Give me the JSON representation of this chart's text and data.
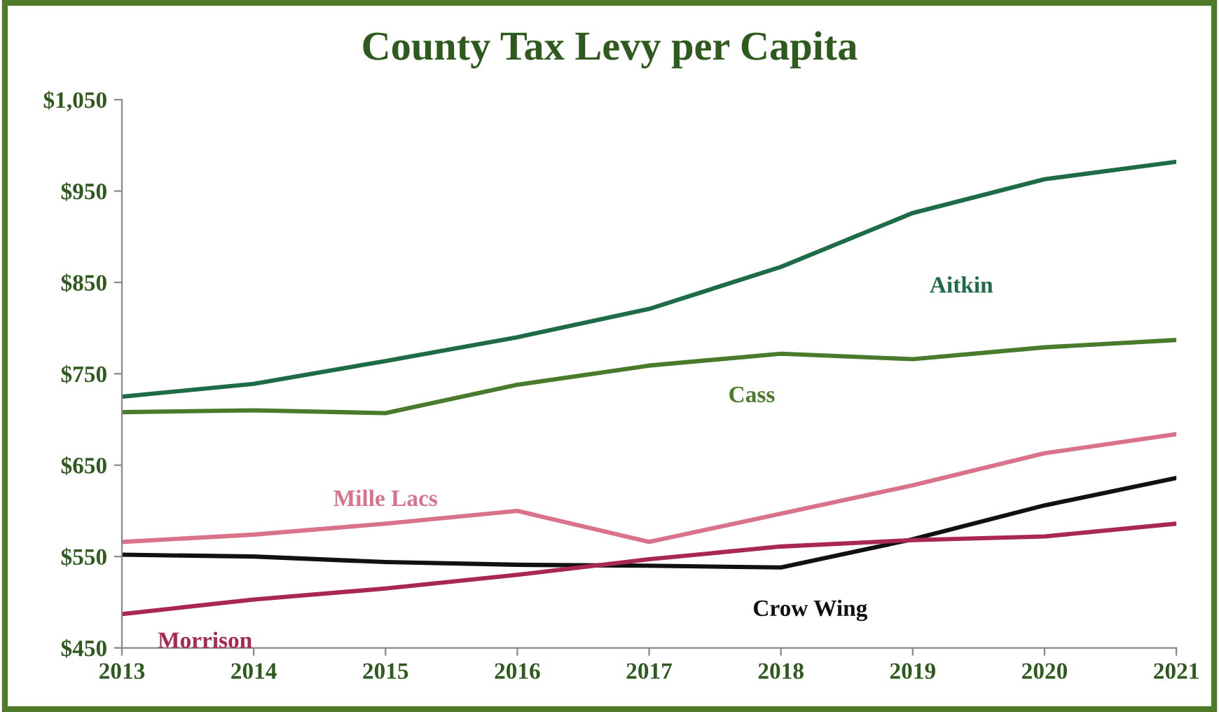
{
  "chart_data": {
    "type": "line",
    "title": "County Tax Levy per Capita",
    "x": [
      2013,
      2014,
      2015,
      2016,
      2017,
      2018,
      2019,
      2020,
      2021
    ],
    "xlim": [
      2013,
      2021
    ],
    "xticks": [
      2013,
      2014,
      2015,
      2016,
      2017,
      2018,
      2019,
      2020,
      2021
    ],
    "ylim": [
      450,
      1050
    ],
    "yticks": [
      {
        "value": 450,
        "label": "$450"
      },
      {
        "value": 550,
        "label": "$550"
      },
      {
        "value": 650,
        "label": "$650"
      },
      {
        "value": 750,
        "label": "$750"
      },
      {
        "value": 850,
        "label": "$850"
      },
      {
        "value": 950,
        "label": "$950"
      },
      {
        "value": 1050,
        "label": "$1,050"
      }
    ],
    "grid": false,
    "legend": false,
    "marker": "none",
    "line_style": "solid",
    "series": [
      {
        "name": "Aitkin",
        "color": "#1e6b48",
        "values": [
          725,
          739,
          764,
          790,
          821,
          867,
          926,
          963,
          982
        ]
      },
      {
        "name": "Cass",
        "color": "#4a7a2c",
        "values": [
          708,
          710,
          707,
          738,
          759,
          772,
          766,
          779,
          787
        ]
      },
      {
        "name": "Mille Lacs",
        "color": "#d9738b",
        "values": [
          566,
          574,
          586,
          600,
          566,
          597,
          628,
          663,
          684
        ]
      },
      {
        "name": "Crow Wing",
        "color": "#111111",
        "values": [
          552,
          550,
          544,
          541,
          540,
          538,
          569,
          606,
          636
        ]
      },
      {
        "name": "Morrison",
        "color": "#a82850",
        "values": [
          487,
          503,
          515,
          530,
          547,
          561,
          568,
          572,
          586
        ]
      }
    ]
  }
}
